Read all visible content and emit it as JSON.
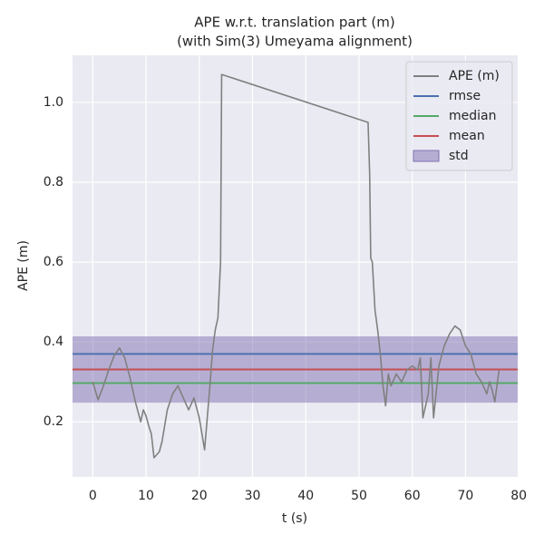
{
  "chart_data": {
    "type": "line",
    "title": "APE w.r.t. translation part (m)",
    "subtitle": "(with Sim(3) Umeyama alignment)",
    "xlabel": "t (s)",
    "ylabel": "APE (m)",
    "xlim": [
      -3.8,
      79.8
    ],
    "ylim": [
      0.062,
      1.118
    ],
    "xticks": [
      0,
      10,
      20,
      30,
      40,
      50,
      60,
      70,
      80
    ],
    "yticks": [
      0.2,
      0.4,
      0.6,
      0.8,
      {
        "value": 1,
        "label": "1.0"
      }
    ],
    "grid": true,
    "legend": "upper right",
    "x": [
      0,
      1,
      2,
      3,
      4,
      5,
      6,
      7,
      8,
      9,
      9.5,
      10,
      10.5,
      11,
      11.5,
      12.5,
      13,
      14,
      15,
      16,
      17,
      18,
      19,
      20,
      21,
      22,
      22.5,
      23,
      23.5,
      24,
      24.2,
      51.7,
      52,
      52.2,
      52.5,
      53,
      53.5,
      54,
      54.5,
      55,
      55.5,
      56,
      57,
      58,
      59,
      60,
      61,
      61.5,
      62,
      63,
      63.5,
      64,
      65,
      66,
      67,
      68,
      69,
      70,
      71,
      72,
      73,
      74,
      74.5,
      75,
      75.5,
      76.3
    ],
    "series": [
      {
        "name": "APE (m)",
        "color": "#808080",
        "values": [
          0.3,
          0.255,
          0.29,
          0.33,
          0.365,
          0.385,
          0.36,
          0.31,
          0.25,
          0.2,
          0.23,
          0.215,
          0.19,
          0.17,
          0.11,
          0.125,
          0.15,
          0.23,
          0.27,
          0.29,
          0.26,
          0.23,
          0.26,
          0.21,
          0.13,
          0.29,
          0.38,
          0.43,
          0.46,
          0.6,
          1.07,
          0.95,
          0.82,
          0.61,
          0.6,
          0.48,
          0.43,
          0.37,
          0.29,
          0.24,
          0.32,
          0.29,
          0.32,
          0.3,
          0.33,
          0.34,
          0.33,
          0.36,
          0.21,
          0.27,
          0.36,
          0.21,
          0.34,
          0.39,
          0.42,
          0.44,
          0.43,
          0.39,
          0.37,
          0.32,
          0.3,
          0.27,
          0.3,
          0.28,
          0.25,
          0.33
        ]
      }
    ],
    "stats": [
      {
        "name": "rmse",
        "color": "#4c72b0",
        "value": 0.37
      },
      {
        "name": "median",
        "color": "#55a868",
        "value": 0.297
      },
      {
        "name": "mean",
        "color": "#c44e52",
        "value": 0.331
      },
      {
        "name": "std",
        "color": "#8172b2",
        "value": 0.083
      }
    ]
  }
}
